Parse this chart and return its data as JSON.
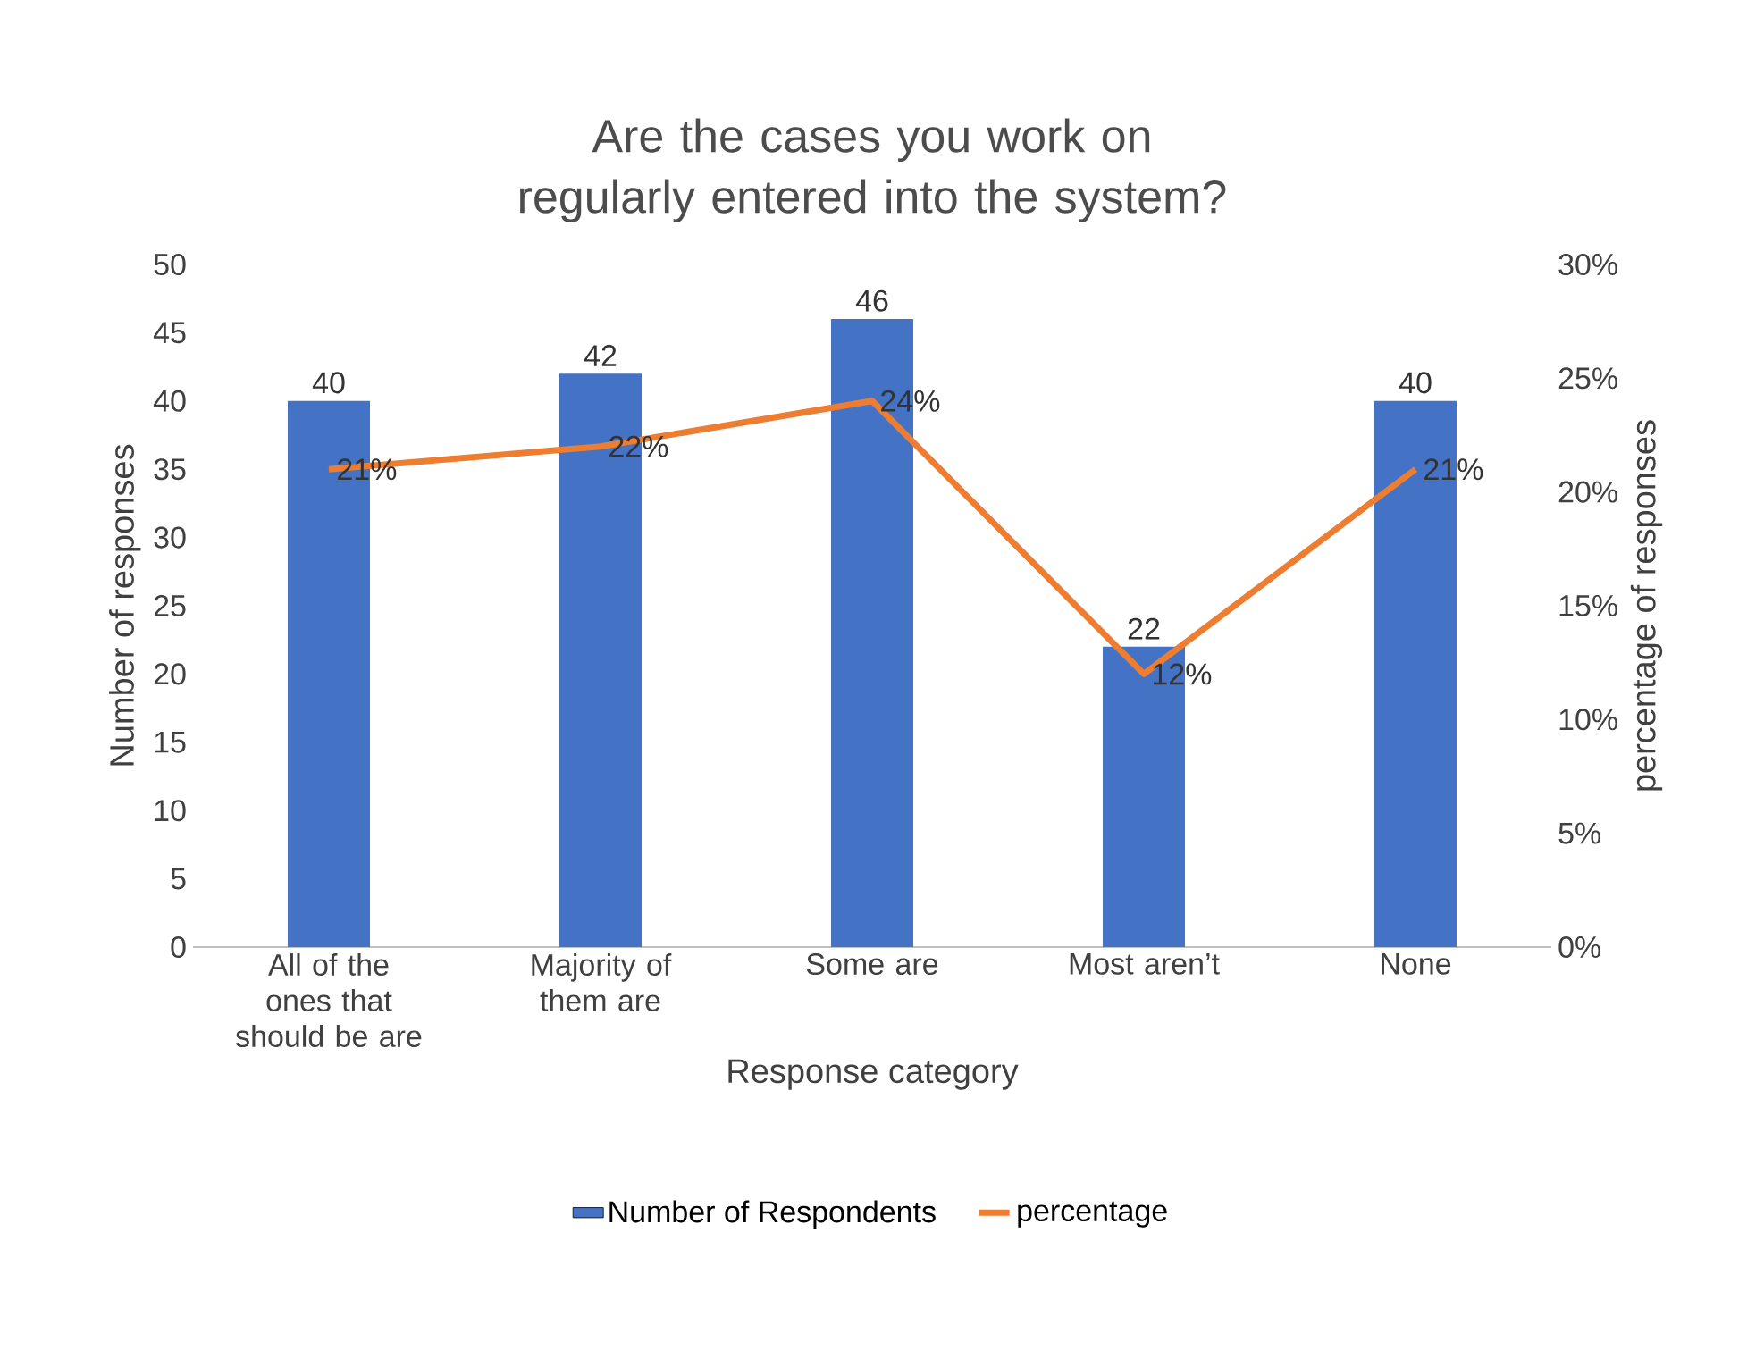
{
  "chart_data": {
    "type": "bar",
    "title": "Are the cases you work on regularly entered into the system?",
    "xlabel": "Response category",
    "ylabel": "Number of responses",
    "y2label": "percentage of responses",
    "categories": [
      "All of the ones that should be are",
      "Majority of them are",
      "Some are",
      "Most aren’t",
      "None"
    ],
    "series": [
      {
        "name": "Number of Respondents",
        "color": "#4472c4",
        "values": [
          40,
          42,
          46,
          22,
          40
        ],
        "value_labels": [
          "40",
          "42",
          "46",
          "22",
          "40"
        ]
      },
      {
        "name": "percentage",
        "type": "line",
        "axis": "y2",
        "marker": "none",
        "color": "#ed7d31",
        "values": [
          21,
          22,
          24,
          12,
          21
        ],
        "value_labels": [
          "21%",
          "22%",
          "24%",
          "12%",
          "21%"
        ]
      }
    ],
    "ylim": [
      0,
      50
    ],
    "yticks": [
      0,
      5,
      10,
      15,
      20,
      25,
      30,
      35,
      40,
      45,
      50
    ],
    "y2lim": [
      0,
      30
    ],
    "y2ticks": [
      {
        "value": 0,
        "label": "0%"
      },
      {
        "value": 5,
        "label": "5%"
      },
      {
        "value": 10,
        "label": "10%"
      },
      {
        "value": 15,
        "label": "15%"
      },
      {
        "value": 20,
        "label": "20%"
      },
      {
        "value": 25,
        "label": "25%"
      },
      {
        "value": 30,
        "label": "30%"
      }
    ],
    "legend": "bottom"
  }
}
